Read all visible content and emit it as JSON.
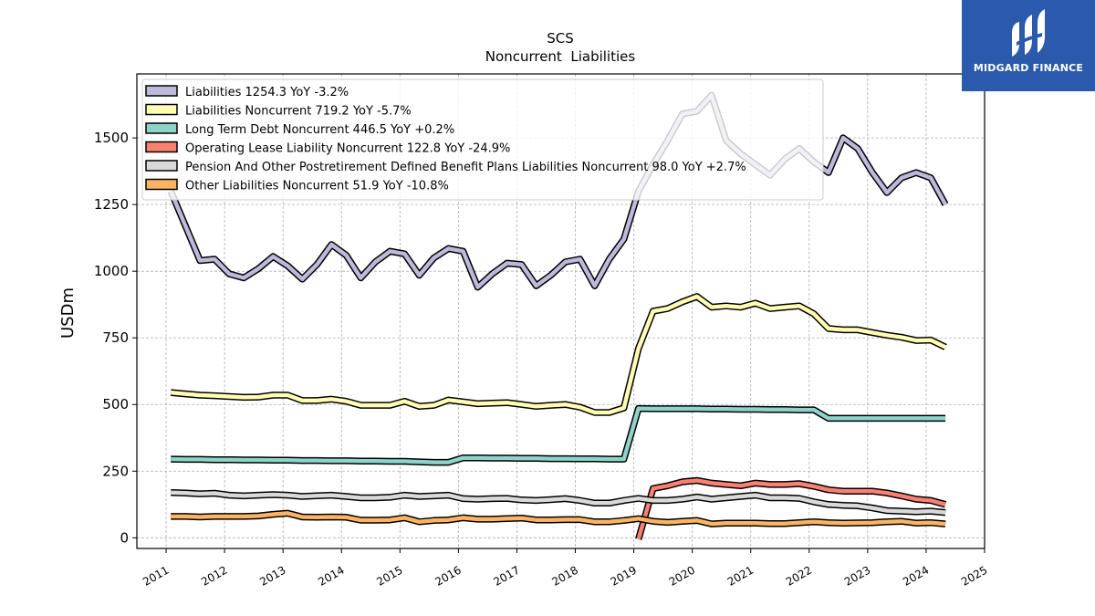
{
  "brand": {
    "name": "MIDGARD FINANCE",
    "color": "#2b5aad",
    "logo_icon": "mf-monogram-icon"
  },
  "chart_data": {
    "type": "line",
    "title": "SCS",
    "subtitle": "Noncurrent  Liabilities",
    "xlabel": "",
    "ylabel": "USDm",
    "xlim": [
      2010.5,
      2025.0
    ],
    "ylim": [
      -40,
      1740
    ],
    "x_ticks": [
      "2011",
      "2012",
      "2013",
      "2014",
      "2015",
      "2016",
      "2017",
      "2018",
      "2019",
      "2020",
      "2021",
      "2022",
      "2023",
      "2024",
      "2025"
    ],
    "y_ticks": [
      0,
      250,
      500,
      750,
      1000,
      1250,
      1500
    ],
    "grid": true,
    "legend_position": "upper-left",
    "x": [
      2011.08,
      2011.33,
      2011.58,
      2011.83,
      2012.08,
      2012.33,
      2012.58,
      2012.83,
      2013.08,
      2013.33,
      2013.58,
      2013.83,
      2014.08,
      2014.33,
      2014.58,
      2014.83,
      2015.08,
      2015.33,
      2015.58,
      2015.83,
      2016.08,
      2016.33,
      2016.58,
      2016.83,
      2017.08,
      2017.33,
      2017.58,
      2017.83,
      2018.08,
      2018.33,
      2018.58,
      2018.83,
      2019.08,
      2019.33,
      2019.58,
      2019.83,
      2020.08,
      2020.33,
      2020.58,
      2020.83,
      2021.08,
      2021.33,
      2021.58,
      2021.83,
      2022.08,
      2022.33,
      2022.58,
      2022.83,
      2023.08,
      2023.33,
      2023.58,
      2023.83,
      2024.08,
      2024.33
    ],
    "series": [
      {
        "name": "Liabilities",
        "legend": "Liabilities  1254.3 YoY -3.2%",
        "color": "#bcb9db",
        "values": [
          1300,
          1170,
          1040,
          1045,
          990,
          975,
          1010,
          1055,
          1020,
          970,
          1025,
          1100,
          1060,
          975,
          1035,
          1075,
          1065,
          985,
          1050,
          1085,
          1075,
          940,
          990,
          1030,
          1025,
          945,
          985,
          1035,
          1045,
          945,
          1045,
          1120,
          1300,
          1400,
          1490,
          1590,
          1600,
          1660,
          1490,
          1440,
          1400,
          1360,
          1420,
          1460,
          1410,
          1370,
          1500,
          1460,
          1370,
          1295,
          1350,
          1370,
          1350,
          1250
        ]
      },
      {
        "name": "Liabilities Noncurrent",
        "legend": "Liabilities Noncurrent  719.2 YoY -5.7%",
        "color": "#ffffb3",
        "values": [
          545,
          540,
          535,
          533,
          530,
          527,
          528,
          535,
          535,
          515,
          515,
          520,
          512,
          497,
          497,
          497,
          512,
          493,
          497,
          517,
          510,
          503,
          505,
          507,
          500,
          493,
          497,
          500,
          490,
          470,
          470,
          487,
          710,
          850,
          860,
          885,
          905,
          865,
          870,
          865,
          880,
          860,
          865,
          870,
          840,
          785,
          780,
          780,
          770,
          760,
          752,
          740,
          742,
          715
        ]
      },
      {
        "name": "Long Term Debt Noncurrent",
        "legend": "Long Term Debt Noncurrent  446.5 YoY +0.2%",
        "color": "#8dd3c7",
        "values": [
          295,
          294,
          294,
          293,
          293,
          292,
          292,
          291,
          291,
          290,
          290,
          289,
          289,
          288,
          288,
          287,
          287,
          285,
          283,
          283,
          300,
          300,
          299,
          299,
          298,
          298,
          297,
          297,
          296,
          296,
          295,
          295,
          485,
          484,
          484,
          484,
          484,
          483,
          483,
          482,
          482,
          481,
          481,
          480,
          480,
          448,
          448,
          448,
          448,
          448,
          448,
          448,
          448,
          448
        ]
      },
      {
        "name": "Operating Lease Liability Noncurrent",
        "legend": "Operating Lease Liability Noncurrent  122.8 YoY -24.9%",
        "color": "#fb8072",
        "values": [
          null,
          null,
          null,
          null,
          null,
          null,
          null,
          null,
          null,
          null,
          null,
          null,
          null,
          null,
          null,
          null,
          null,
          null,
          null,
          null,
          null,
          null,
          null,
          null,
          null,
          null,
          null,
          null,
          null,
          null,
          null,
          null,
          -5,
          185,
          195,
          210,
          215,
          205,
          200,
          195,
          205,
          200,
          200,
          203,
          193,
          180,
          175,
          175,
          175,
          168,
          157,
          145,
          140,
          125
        ]
      },
      {
        "name": "Pension And Other Postretirement Defined Benefit Plans Liabilities Noncurrent",
        "legend": "Pension And Other Postretirement Defined Benefit Plans Liabilities Noncurrent  98.0 YoY +2.7%",
        "color": "#d9d9d9",
        "values": [
          170,
          168,
          165,
          167,
          160,
          157,
          160,
          162,
          160,
          155,
          158,
          160,
          155,
          150,
          150,
          152,
          160,
          155,
          157,
          160,
          147,
          145,
          147,
          148,
          142,
          140,
          143,
          147,
          140,
          130,
          130,
          140,
          148,
          140,
          140,
          145,
          153,
          145,
          150,
          155,
          160,
          150,
          150,
          148,
          135,
          125,
          122,
          120,
          112,
          102,
          100,
          98,
          100,
          95
        ]
      },
      {
        "name": "Other Liabilities Noncurrent",
        "legend": "Other Liabilities Noncurrent  51.9 YoY -10.8%",
        "color": "#fdb462",
        "values": [
          80,
          80,
          78,
          80,
          80,
          80,
          82,
          88,
          92,
          78,
          77,
          78,
          77,
          66,
          66,
          67,
          75,
          60,
          65,
          67,
          75,
          70,
          70,
          72,
          74,
          67,
          67,
          68,
          68,
          60,
          60,
          65,
          72,
          62,
          58,
          62,
          65,
          52,
          55,
          55,
          55,
          53,
          53,
          57,
          60,
          57,
          55,
          56,
          57,
          60,
          62,
          55,
          57,
          52
        ]
      }
    ]
  }
}
